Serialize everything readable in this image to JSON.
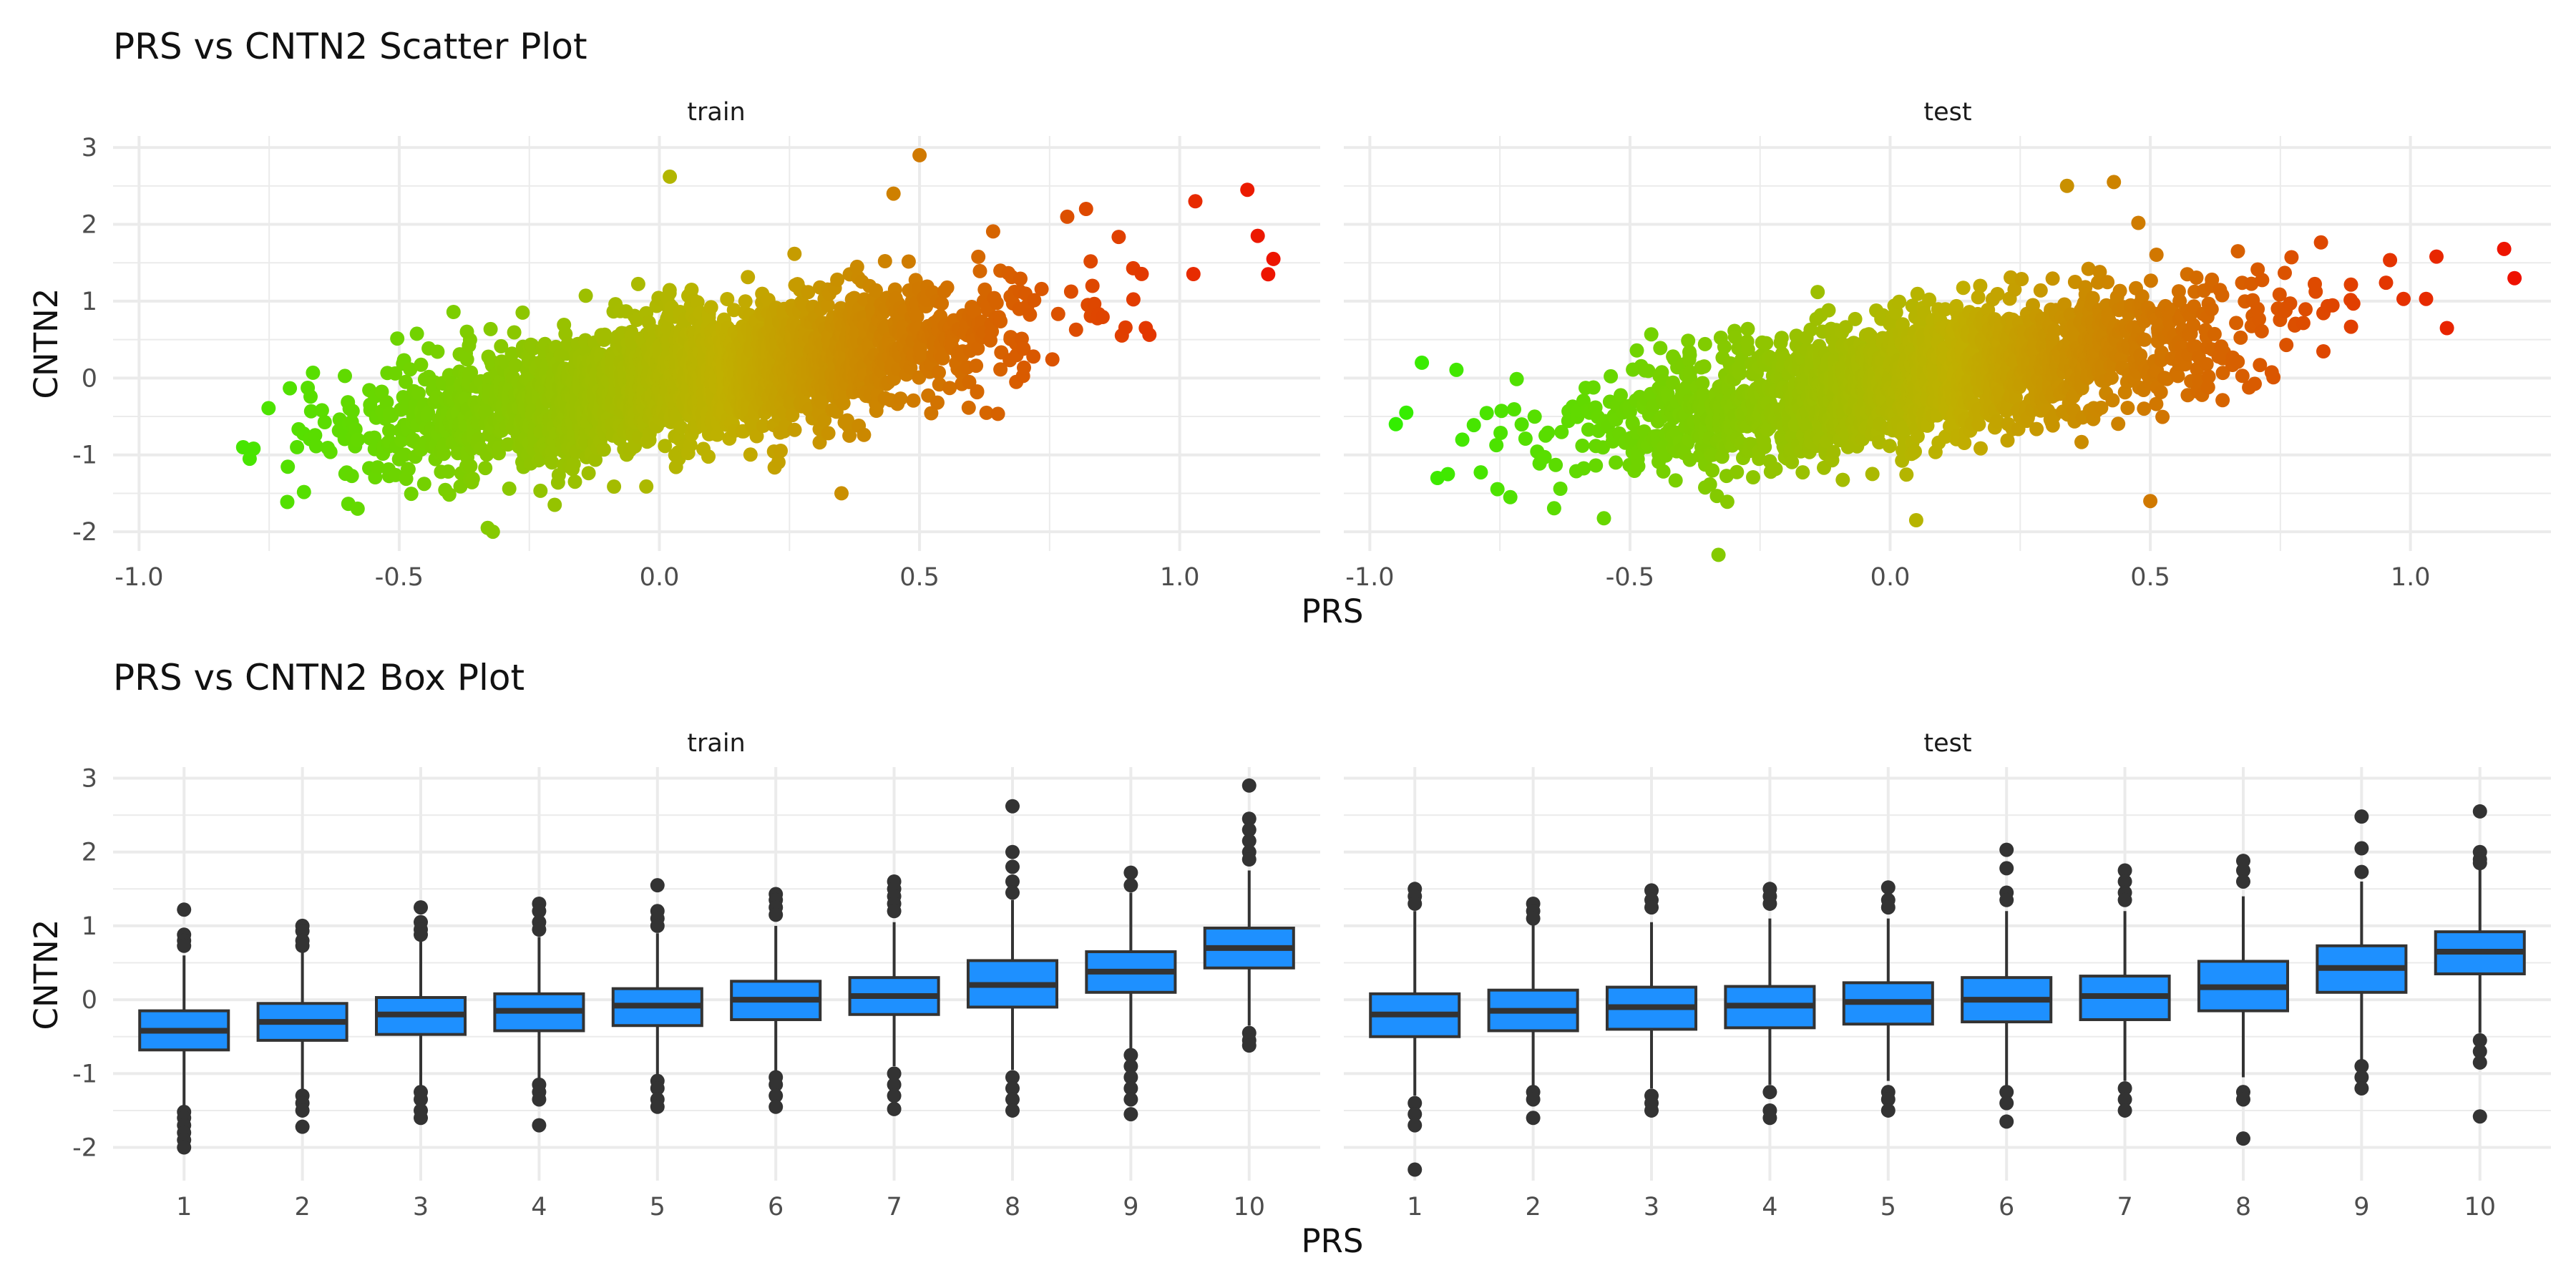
{
  "chart_data": [
    {
      "type": "scatter",
      "title": "PRS vs CNTN2 Scatter Plot",
      "xlabel": "PRS",
      "ylabel": "CNTN2",
      "facets": [
        "train",
        "test"
      ],
      "xlim": [
        -1.05,
        1.27
      ],
      "ylim": [
        -2.25,
        3.15
      ],
      "x_ticks": [
        -1.0,
        -0.5,
        0.0,
        0.5,
        1.0
      ],
      "x_tick_labels": [
        "-1.0",
        "-0.5",
        "0.0",
        "0.5",
        "1.0"
      ],
      "y_ticks": [
        -2,
        -1,
        0,
        1,
        2,
        3
      ],
      "y_tick_labels": [
        "-2",
        "-1",
        "0",
        "1",
        "2",
        "3"
      ],
      "grid": true,
      "color_scale": {
        "low": "#33ee00",
        "mid": "#c0b000",
        "high": "#ee1100",
        "by": "PRS"
      },
      "point_cloud": {
        "train": {
          "x_range": [
            -0.8,
            1.18
          ],
          "slope": 1.05,
          "intercept": -0.05,
          "y_sd": 0.42
        },
        "test": {
          "x_range": [
            -0.95,
            1.2
          ],
          "slope": 1.05,
          "intercept": -0.05,
          "y_sd": 0.42
        }
      },
      "notable_points": {
        "train": [
          {
            "x": -0.8,
            "y": -0.9
          },
          {
            "x": 0.02,
            "y": 2.62
          },
          {
            "x": 0.5,
            "y": 2.9
          },
          {
            "x": 0.45,
            "y": 2.4
          },
          {
            "x": 1.13,
            "y": 2.45
          },
          {
            "x": 1.03,
            "y": 2.3
          },
          {
            "x": 1.15,
            "y": 1.85
          },
          {
            "x": 1.18,
            "y": 1.55
          },
          {
            "x": 1.17,
            "y": 1.35
          },
          {
            "x": 0.82,
            "y": 2.2
          },
          {
            "x": 0.35,
            "y": -1.5
          },
          {
            "x": -0.32,
            "y": -2.0
          },
          {
            "x": -0.33,
            "y": -1.95
          },
          {
            "x": -0.58,
            "y": -1.7
          }
        ],
        "test": [
          {
            "x": -0.95,
            "y": -0.6
          },
          {
            "x": -0.93,
            "y": -0.45
          },
          {
            "x": -0.9,
            "y": 0.2
          },
          {
            "x": -0.87,
            "y": -1.3
          },
          {
            "x": -0.85,
            "y": -1.25
          },
          {
            "x": -0.73,
            "y": -1.55
          },
          {
            "x": -0.33,
            "y": -2.3
          },
          {
            "x": 0.05,
            "y": -1.85
          },
          {
            "x": 0.5,
            "y": -1.6
          },
          {
            "x": 0.34,
            "y": 2.5
          },
          {
            "x": 0.43,
            "y": 2.55
          },
          {
            "x": 1.18,
            "y": 1.68
          },
          {
            "x": 1.2,
            "y": 1.3
          },
          {
            "x": 1.07,
            "y": 0.65
          },
          {
            "x": 1.05,
            "y": 1.58
          },
          {
            "x": 1.03,
            "y": 1.03
          }
        ]
      }
    },
    {
      "type": "box",
      "title": "PRS vs CNTN2 Box Plot",
      "xlabel": "PRS",
      "ylabel": "CNTN2",
      "facets": [
        "train",
        "test"
      ],
      "categories": [
        "1",
        "2",
        "3",
        "4",
        "5",
        "6",
        "7",
        "8",
        "9",
        "10"
      ],
      "ylim": [
        -2.45,
        3.15
      ],
      "y_ticks": [
        -2,
        -1,
        0,
        1,
        2,
        3
      ],
      "y_tick_labels": [
        "-2",
        "-1",
        "0",
        "1",
        "2",
        "3"
      ],
      "grid": true,
      "fill": "#1e90ff",
      "series": [
        {
          "name": "train",
          "boxes": [
            {
              "q1": -0.68,
              "median": -0.42,
              "q3": -0.15,
              "whisker_low": -1.43,
              "whisker_high": 0.6,
              "outliers": [
                1.22,
                0.88,
                0.8,
                0.73,
                -1.52,
                -1.6,
                -1.7,
                -1.8,
                -1.9,
                -2.0
              ]
            },
            {
              "q1": -0.55,
              "median": -0.3,
              "q3": -0.05,
              "whisker_low": -1.25,
              "whisker_high": 0.7,
              "outliers": [
                1.0,
                0.93,
                0.8,
                0.73,
                -1.3,
                -1.4,
                -1.5,
                -1.72
              ]
            },
            {
              "q1": -0.47,
              "median": -0.2,
              "q3": 0.03,
              "whisker_low": -1.18,
              "whisker_high": 0.8,
              "outliers": [
                1.25,
                1.05,
                0.95,
                0.88,
                -1.25,
                -1.35,
                -1.5,
                -1.6
              ]
            },
            {
              "q1": -0.42,
              "median": -0.15,
              "q3": 0.08,
              "whisker_low": -1.1,
              "whisker_high": 0.85,
              "outliers": [
                1.3,
                1.2,
                1.05,
                0.95,
                -1.15,
                -1.25,
                -1.35,
                -1.7
              ]
            },
            {
              "q1": -0.35,
              "median": -0.08,
              "q3": 0.15,
              "whisker_low": -1.05,
              "whisker_high": 0.9,
              "outliers": [
                1.55,
                1.2,
                1.1,
                1.0,
                -1.1,
                -1.2,
                -1.35,
                -1.45
              ]
            },
            {
              "q1": -0.27,
              "median": 0.0,
              "q3": 0.25,
              "whisker_low": -0.98,
              "whisker_high": 1.0,
              "outliers": [
                1.43,
                1.35,
                1.25,
                1.15,
                -1.05,
                -1.15,
                -1.3,
                -1.45
              ]
            },
            {
              "q1": -0.2,
              "median": 0.05,
              "q3": 0.3,
              "whisker_low": -0.9,
              "whisker_high": 1.05,
              "outliers": [
                1.6,
                1.5,
                1.4,
                1.3,
                1.2,
                -1.0,
                -1.15,
                -1.3,
                -1.48
              ]
            },
            {
              "q1": -0.1,
              "median": 0.2,
              "q3": 0.53,
              "whisker_low": -0.95,
              "whisker_high": 1.35,
              "outliers": [
                2.62,
                2.0,
                1.8,
                1.6,
                1.45,
                -1.05,
                -1.2,
                -1.35,
                -1.5
              ]
            },
            {
              "q1": 0.1,
              "median": 0.38,
              "q3": 0.65,
              "whisker_low": -0.7,
              "whisker_high": 1.45,
              "outliers": [
                1.72,
                1.55,
                -0.75,
                -0.9,
                -1.05,
                -1.2,
                -1.35,
                -1.55
              ]
            },
            {
              "q1": 0.43,
              "median": 0.7,
              "q3": 0.97,
              "whisker_low": -0.35,
              "whisker_high": 1.75,
              "outliers": [
                2.9,
                2.45,
                2.3,
                2.15,
                2.0,
                1.9,
                -0.45,
                -0.55,
                -0.62
              ]
            }
          ]
        },
        {
          "name": "test",
          "boxes": [
            {
              "q1": -0.5,
              "median": -0.2,
              "q3": 0.08,
              "whisker_low": -1.3,
              "whisker_high": 1.2,
              "outliers": [
                1.5,
                1.4,
                1.3,
                -1.4,
                -1.55,
                -1.7,
                -2.3
              ]
            },
            {
              "q1": -0.42,
              "median": -0.15,
              "q3": 0.13,
              "whisker_low": -1.2,
              "whisker_high": 1.05,
              "outliers": [
                1.3,
                1.2,
                1.1,
                -1.25,
                -1.35,
                -1.6
              ]
            },
            {
              "q1": -0.4,
              "median": -0.1,
              "q3": 0.17,
              "whisker_low": -1.2,
              "whisker_high": 1.05,
              "outliers": [
                1.48,
                1.35,
                1.25,
                -1.3,
                -1.4,
                -1.5
              ]
            },
            {
              "q1": -0.38,
              "median": -0.08,
              "q3": 0.18,
              "whisker_low": -1.15,
              "whisker_high": 1.1,
              "outliers": [
                1.5,
                1.4,
                1.3,
                -1.25,
                -1.5,
                -1.6
              ]
            },
            {
              "q1": -0.33,
              "median": -0.03,
              "q3": 0.23,
              "whisker_low": -1.1,
              "whisker_high": 1.1,
              "outliers": [
                1.52,
                1.35,
                1.25,
                -1.25,
                -1.35,
                -1.5
              ]
            },
            {
              "q1": -0.3,
              "median": 0.0,
              "q3": 0.3,
              "whisker_low": -1.2,
              "whisker_high": 1.2,
              "outliers": [
                2.03,
                1.78,
                1.45,
                1.35,
                -1.25,
                -1.4,
                -1.65
              ]
            },
            {
              "q1": -0.27,
              "median": 0.05,
              "q3": 0.32,
              "whisker_low": -1.1,
              "whisker_high": 1.2,
              "outliers": [
                1.75,
                1.6,
                1.45,
                1.35,
                -1.2,
                -1.35,
                -1.5
              ]
            },
            {
              "q1": -0.15,
              "median": 0.17,
              "q3": 0.52,
              "whisker_low": -1.05,
              "whisker_high": 1.4,
              "outliers": [
                1.88,
                1.75,
                1.6,
                -1.25,
                -1.35,
                -1.88
              ]
            },
            {
              "q1": 0.1,
              "median": 0.43,
              "q3": 0.73,
              "whisker_low": -0.85,
              "whisker_high": 1.6,
              "outliers": [
                2.48,
                2.05,
                1.73,
                -0.9,
                -1.05,
                -1.2
              ]
            },
            {
              "q1": 0.35,
              "median": 0.65,
              "q3": 0.92,
              "whisker_low": -0.45,
              "whisker_high": 1.8,
              "outliers": [
                2.55,
                2.0,
                1.9,
                1.85,
                -0.55,
                -0.7,
                -0.85,
                -1.58
              ]
            }
          ]
        }
      ]
    }
  ]
}
